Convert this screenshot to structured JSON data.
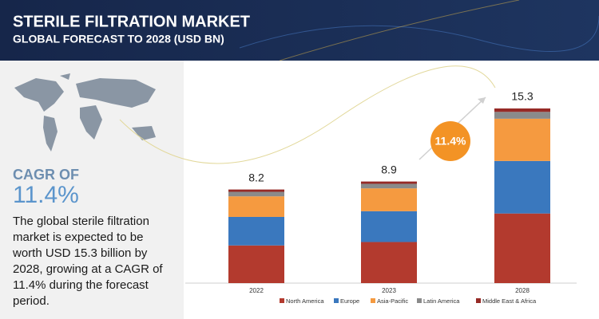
{
  "header": {
    "title": "STERILE FILTRATION MARKET",
    "subtitle": "GLOBAL FORECAST TO 2028 (USD BN)"
  },
  "sidebar": {
    "cagr_label": "CAGR OF",
    "cagr": "11.4%",
    "description": "The global sterile filtration market is expected to be worth USD 15.3 billion by 2028, growing at a CAGR of 11.4% during the forecast period."
  },
  "chart_data": {
    "type": "stacked_bar",
    "categories": [
      "2022",
      "2023",
      "2028"
    ],
    "series": [
      {
        "name": "North America",
        "color": "#b33a2e",
        "values": [
          3.3,
          3.6,
          6.1
        ]
      },
      {
        "name": "Europe",
        "color": "#3a78be",
        "values": [
          2.5,
          2.7,
          4.6
        ]
      },
      {
        "name": "Asia-Pacific",
        "color": "#f59a40",
        "values": [
          1.8,
          2.0,
          3.7
        ]
      },
      {
        "name": "Latin America",
        "color": "#8a8a8a",
        "values": [
          0.4,
          0.4,
          0.6
        ]
      },
      {
        "name": "Middle East & Africa",
        "color": "#962a26",
        "values": [
          0.2,
          0.2,
          0.3
        ]
      }
    ],
    "totals": [
      8.2,
      8.9,
      15.3
    ],
    "annotation": "11.4%",
    "legend": "bottom"
  }
}
